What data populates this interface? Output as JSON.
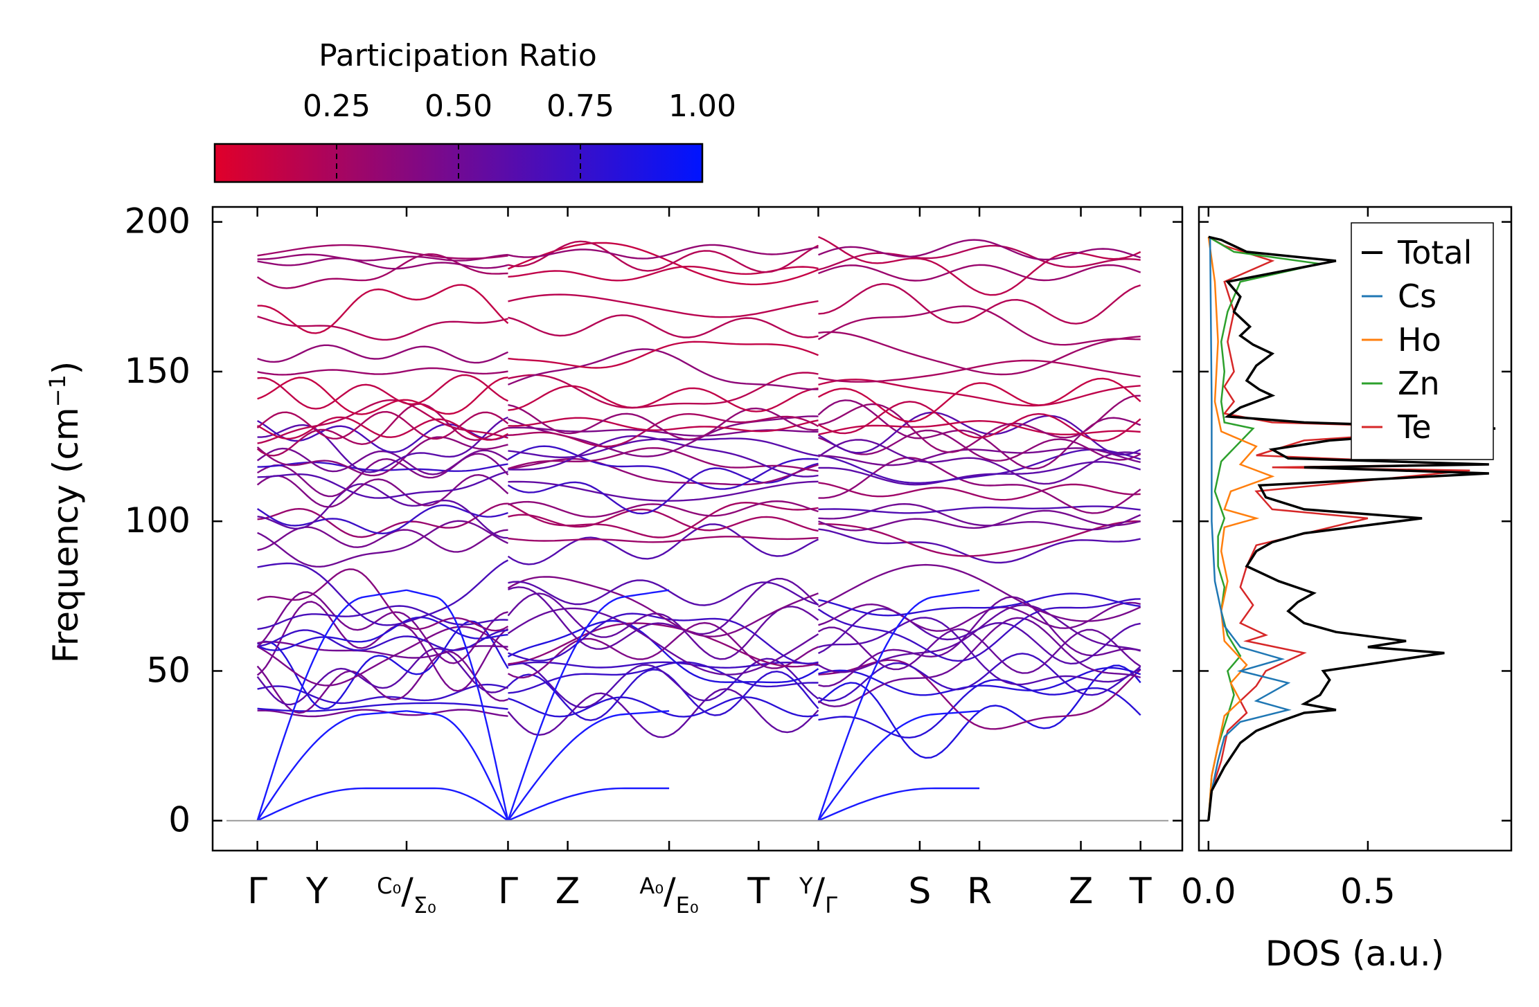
{
  "chart_data": [
    {
      "type": "line",
      "title": "",
      "xlabel": "",
      "ylabel": "Frequency (cm",
      "ylabel_sup": "−1",
      "ylabel_tail": ")",
      "ylim": [
        -10,
        205
      ],
      "yticks": [
        0,
        50,
        100,
        150,
        200
      ],
      "ytick_labels": [
        "0",
        "50",
        "100",
        "150",
        "200"
      ],
      "xlim": [
        -0.15,
        3.1
      ],
      "kpoints": [
        {
          "x": 0.0,
          "label": "Γ"
        },
        {
          "x": 0.2,
          "label": "Y"
        },
        {
          "x": 0.5,
          "label": "",
          "label_sup": "C₀",
          "label_sub": "Σ₀"
        },
        {
          "x": 0.84,
          "label": "Γ"
        },
        {
          "x": 1.04,
          "label": "Z"
        },
        {
          "x": 1.38,
          "label": "",
          "label_sup": "A₀",
          "label_sub": "E₀"
        },
        {
          "x": 1.68,
          "label": "T"
        },
        {
          "x": 1.88,
          "label": "",
          "label_sup": "Y",
          "label_sub": "Γ"
        },
        {
          "x": 2.22,
          "label": "S"
        },
        {
          "x": 2.42,
          "label": "R"
        },
        {
          "x": 2.76,
          "label": "Z"
        },
        {
          "x": 2.96,
          "label": "T"
        }
      ],
      "segment_breaks": [
        0.84,
        1.88
      ],
      "colorbar": {
        "label": "Participation Ratio",
        "range": [
          0.0,
          1.0
        ],
        "ticks": [
          0.25,
          0.5,
          0.75,
          1.0
        ],
        "tick_labels": [
          "0.25",
          "0.50",
          "0.75",
          "1.00"
        ],
        "color_low": "#e0002a",
        "color_high": "#0014ff"
      },
      "series_description": "phonon branches colored by participation ratio",
      "acoustic_colour": "#1a1aff"
    },
    {
      "type": "line",
      "xlabel": "DOS (a.u.)",
      "xlim": [
        -0.03,
        0.95
      ],
      "xticks": [
        0.0,
        0.5
      ],
      "xtick_labels": [
        "0.0",
        "0.5"
      ],
      "ylim": [
        -10,
        205
      ],
      "legend_position": "top-right",
      "series": [
        {
          "name": "Total",
          "color": "#000000",
          "points": [
            [
              0,
              0
            ],
            [
              0.01,
              10
            ],
            [
              0.05,
              18
            ],
            [
              0.1,
              26
            ],
            [
              0.15,
              30
            ],
            [
              0.22,
              33
            ],
            [
              0.3,
              36
            ],
            [
              0.4,
              37
            ],
            [
              0.3,
              39
            ],
            [
              0.35,
              42
            ],
            [
              0.38,
              47
            ],
            [
              0.36,
              50
            ],
            [
              0.55,
              53
            ],
            [
              0.74,
              56
            ],
            [
              0.5,
              58
            ],
            [
              0.62,
              60
            ],
            [
              0.4,
              63
            ],
            [
              0.3,
              66
            ],
            [
              0.25,
              70
            ],
            [
              0.28,
              73
            ],
            [
              0.33,
              76
            ],
            [
              0.22,
              80
            ],
            [
              0.12,
              85
            ],
            [
              0.15,
              90
            ],
            [
              0.2,
              93
            ],
            [
              0.3,
              96
            ],
            [
              0.67,
              101
            ],
            [
              0.3,
              104
            ],
            [
              0.18,
              108
            ],
            [
              0.16,
              112
            ],
            [
              0.88,
              116
            ],
            [
              0.3,
              118
            ],
            [
              0.88,
              119
            ],
            [
              0.25,
              121
            ],
            [
              0.2,
              124
            ],
            [
              0.38,
              127
            ],
            [
              0.9,
              131
            ],
            [
              0.3,
              133
            ],
            [
              0.06,
              135
            ],
            [
              0.1,
              138
            ],
            [
              0.2,
              142
            ],
            [
              0.16,
              144
            ],
            [
              0.12,
              147
            ],
            [
              0.15,
              152
            ],
            [
              0.2,
              156
            ],
            [
              0.14,
              159
            ],
            [
              0.1,
              162
            ],
            [
              0.13,
              165
            ],
            [
              0.08,
              170
            ],
            [
              0.1,
              175
            ],
            [
              0.06,
              180
            ],
            [
              0.4,
              187
            ],
            [
              0.12,
              190
            ],
            [
              0.04,
              194
            ],
            [
              0,
              195
            ]
          ]
        },
        {
          "name": "Cs",
          "color": "#1f77b4",
          "points": [
            [
              0,
              0
            ],
            [
              0.01,
              10
            ],
            [
              0.03,
              20
            ],
            [
              0.05,
              28
            ],
            [
              0.1,
              33
            ],
            [
              0.25,
              37
            ],
            [
              0.15,
              40
            ],
            [
              0.25,
              46
            ],
            [
              0.1,
              50
            ],
            [
              0.23,
              54
            ],
            [
              0.1,
              58
            ],
            [
              0.05,
              65
            ],
            [
              0.02,
              80
            ],
            [
              0.01,
              100
            ],
            [
              0.01,
              140
            ],
            [
              0.005,
              195
            ]
          ]
        },
        {
          "name": "Ho",
          "color": "#ff7f0e",
          "points": [
            [
              0,
              0
            ],
            [
              0.01,
              15
            ],
            [
              0.03,
              25
            ],
            [
              0.05,
              35
            ],
            [
              0.1,
              40
            ],
            [
              0.07,
              46
            ],
            [
              0.12,
              52
            ],
            [
              0.05,
              60
            ],
            [
              0.04,
              70
            ],
            [
              0.06,
              80
            ],
            [
              0.04,
              90
            ],
            [
              0.05,
              98
            ],
            [
              0.15,
              101
            ],
            [
              0.05,
              104
            ],
            [
              0.07,
              110
            ],
            [
              0.2,
              115
            ],
            [
              0.1,
              119
            ],
            [
              0.15,
              125
            ],
            [
              0.04,
              130
            ],
            [
              0.02,
              140
            ],
            [
              0.03,
              160
            ],
            [
              0.02,
              180
            ],
            [
              0,
              195
            ]
          ]
        },
        {
          "name": "Zn",
          "color": "#2ca02c",
          "points": [
            [
              0,
              0
            ],
            [
              0.01,
              15
            ],
            [
              0.03,
              25
            ],
            [
              0.06,
              35
            ],
            [
              0.08,
              42
            ],
            [
              0.06,
              50
            ],
            [
              0.1,
              55
            ],
            [
              0.06,
              62
            ],
            [
              0.04,
              70
            ],
            [
              0.05,
              78
            ],
            [
              0.03,
              85
            ],
            [
              0.03,
              95
            ],
            [
              0.05,
              101
            ],
            [
              0.02,
              110
            ],
            [
              0.04,
              120
            ],
            [
              0.14,
              131
            ],
            [
              0.05,
              133
            ],
            [
              0.04,
              140
            ],
            [
              0.05,
              150
            ],
            [
              0.04,
              160
            ],
            [
              0.06,
              170
            ],
            [
              0.1,
              180
            ],
            [
              0.35,
              186
            ],
            [
              0.08,
              190
            ],
            [
              0,
              195
            ]
          ]
        },
        {
          "name": "Te",
          "color": "#d62728",
          "points": [
            [
              0,
              0
            ],
            [
              0.01,
              10
            ],
            [
              0.04,
              20
            ],
            [
              0.06,
              30
            ],
            [
              0.12,
              36
            ],
            [
              0.1,
              40
            ],
            [
              0.15,
              45
            ],
            [
              0.18,
              50
            ],
            [
              0.3,
              56
            ],
            [
              0.12,
              60
            ],
            [
              0.18,
              62
            ],
            [
              0.1,
              66
            ],
            [
              0.14,
              72
            ],
            [
              0.1,
              78
            ],
            [
              0.12,
              85
            ],
            [
              0.15,
              92
            ],
            [
              0.5,
              101
            ],
            [
              0.2,
              104
            ],
            [
              0.15,
              110
            ],
            [
              0.82,
              117
            ],
            [
              0.2,
              118
            ],
            [
              0.82,
              119
            ],
            [
              0.15,
              122
            ],
            [
              0.3,
              127
            ],
            [
              0.86,
              131
            ],
            [
              0.2,
              133
            ],
            [
              0.05,
              136
            ],
            [
              0.08,
              140
            ],
            [
              0.05,
              145
            ],
            [
              0.08,
              150
            ],
            [
              0.06,
              160
            ],
            [
              0.08,
              170
            ],
            [
              0.05,
              180
            ],
            [
              0.2,
              187
            ],
            [
              0.05,
              192
            ],
            [
              0,
              195
            ]
          ]
        }
      ]
    }
  ]
}
